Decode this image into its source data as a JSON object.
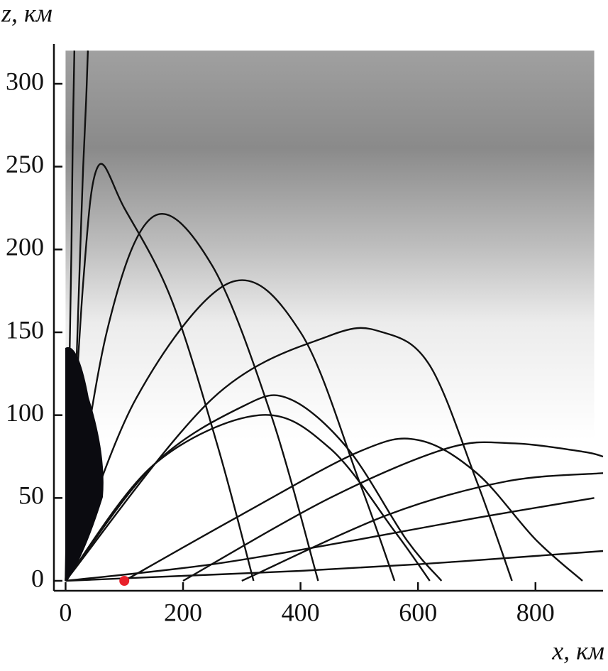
{
  "chart_data": {
    "type": "line",
    "xlabel": "x, км",
    "ylabel": "z, км",
    "xlim": [
      -15,
      915
    ],
    "ylim": [
      -6,
      324
    ],
    "xticks": [
      0,
      200,
      400,
      600,
      800
    ],
    "yticks": [
      0,
      50,
      100,
      150,
      200,
      250,
      300
    ],
    "shading": {
      "xlim": [
        0,
        900
      ],
      "ylim": [
        85,
        320
      ]
    },
    "color": "#111111",
    "series": [
      {
        "x": [
          0,
          5,
          10,
          12,
          15
        ],
        "values": [
          0,
          100,
          200,
          260,
          320
        ]
      },
      {
        "x": [
          0,
          15,
          25,
          30,
          35,
          38
        ],
        "values": [
          0,
          100,
          200,
          250,
          290,
          320
        ]
      },
      {
        "x": [
          0,
          30,
          55,
          100,
          180,
          260,
          320
        ],
        "values": [
          0,
          180,
          250,
          225,
          170,
          80,
          0
        ]
      },
      {
        "x": [
          0,
          70,
          150,
          250,
          350,
          430
        ],
        "values": [
          0,
          150,
          220,
          190,
          100,
          0
        ]
      },
      {
        "x": [
          0,
          120,
          280,
          400,
          500,
          560
        ],
        "values": [
          0,
          110,
          180,
          150,
          60,
          0
        ]
      },
      {
        "x": [
          0,
          250,
          450,
          540,
          620,
          700,
          760
        ],
        "values": [
          0,
          110,
          148,
          150,
          130,
          60,
          0
        ]
      },
      {
        "x": [
          0,
          150,
          300,
          380,
          480,
          580,
          640
        ],
        "values": [
          0,
          70,
          105,
          110,
          80,
          25,
          0
        ]
      },
      {
        "x": [
          0,
          150,
          330,
          450,
          560,
          620
        ],
        "values": [
          0,
          70,
          100,
          80,
          30,
          0
        ]
      },
      {
        "x": [
          100,
          300,
          500,
          600,
          700,
          800,
          880
        ],
        "values": [
          0,
          40,
          78,
          85,
          65,
          25,
          0
        ]
      },
      {
        "x": [
          200,
          450,
          650,
          760,
          880,
          915
        ],
        "values": [
          0,
          50,
          80,
          83,
          78,
          75
        ]
      },
      {
        "x": [
          300,
          550,
          750,
          915
        ],
        "values": [
          0,
          40,
          60,
          65
        ]
      },
      {
        "x": [
          0,
          250,
          500,
          700,
          900
        ],
        "values": [
          0,
          10,
          25,
          38,
          50
        ]
      },
      {
        "x": [
          0,
          200,
          400,
          600,
          800,
          915
        ],
        "values": [
          0,
          3,
          6,
          10,
          15,
          18
        ]
      }
    ],
    "points": [
      {
        "x": 100,
        "y": 0,
        "color": "#e8202a"
      }
    ]
  }
}
